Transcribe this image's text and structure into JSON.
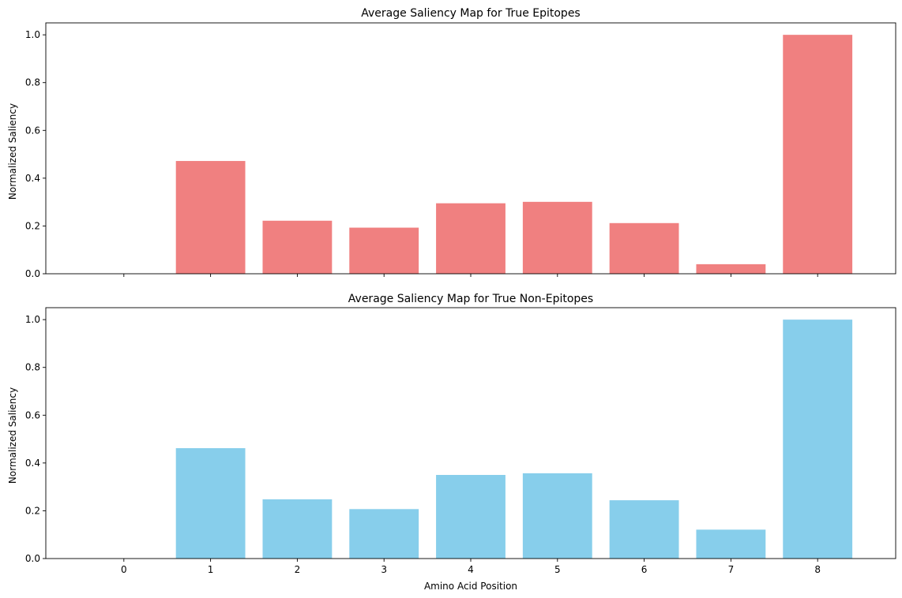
{
  "chart_data": [
    {
      "type": "bar",
      "title": "Average Saliency Map for True Epitopes",
      "xlabel": "",
      "ylabel": "Normalized Saliency",
      "categories": [
        "0",
        "1",
        "2",
        "3",
        "4",
        "5",
        "6",
        "7",
        "8"
      ],
      "values": [
        0.0,
        0.472,
        0.222,
        0.193,
        0.295,
        0.301,
        0.212,
        0.04,
        1.0
      ],
      "ylim": [
        0,
        1.05
      ],
      "yticks": [
        "0.0",
        "0.2",
        "0.4",
        "0.6",
        "0.8",
        "1.0"
      ],
      "xtick_labels_visible": false,
      "color": "#f08080",
      "grid": false
    },
    {
      "type": "bar",
      "title": "Average Saliency Map for True Non-Epitopes",
      "xlabel": "Amino Acid Position",
      "ylabel": "Normalized Saliency",
      "categories": [
        "0",
        "1",
        "2",
        "3",
        "4",
        "5",
        "6",
        "7",
        "8"
      ],
      "values": [
        0.0,
        0.462,
        0.248,
        0.207,
        0.35,
        0.357,
        0.244,
        0.121,
        1.0
      ],
      "ylim": [
        0,
        1.05
      ],
      "yticks": [
        "0.0",
        "0.2",
        "0.4",
        "0.6",
        "0.8",
        "1.0"
      ],
      "xtick_labels_visible": true,
      "color": "#87ceeb",
      "grid": false
    }
  ]
}
